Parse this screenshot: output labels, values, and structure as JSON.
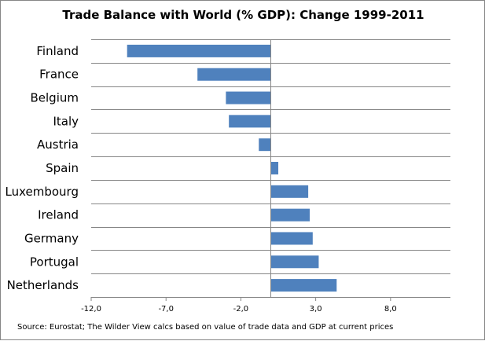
{
  "chart_data": {
    "type": "bar",
    "orientation": "horizontal",
    "title": "Trade Balance with World (% GDP): Change 1999-2011",
    "categories": [
      "Finland",
      "France",
      "Belgium",
      "Italy",
      "Austria",
      "Spain",
      "Luxembourg",
      "Ireland",
      "Germany",
      "Portugal",
      "Netherlands"
    ],
    "values": [
      -9.6,
      -4.9,
      -3.0,
      -2.8,
      -0.8,
      0.5,
      2.5,
      2.6,
      2.8,
      3.2,
      4.4
    ],
    "xlim": [
      -12.0,
      12.0
    ],
    "xticks": [
      "-12,0",
      "-7,0",
      "-2,0",
      "3,0",
      "8,0"
    ],
    "xtick_values": [
      -12,
      -7,
      -2,
      3,
      8
    ],
    "xlabel": "",
    "ylabel": "",
    "grid": true,
    "bar_color": "#4f81bd",
    "gridline_color": "#868686",
    "source_note": "Source: Eurostat; The Wilder View calcs based on value of trade data and GDP at current prices"
  }
}
